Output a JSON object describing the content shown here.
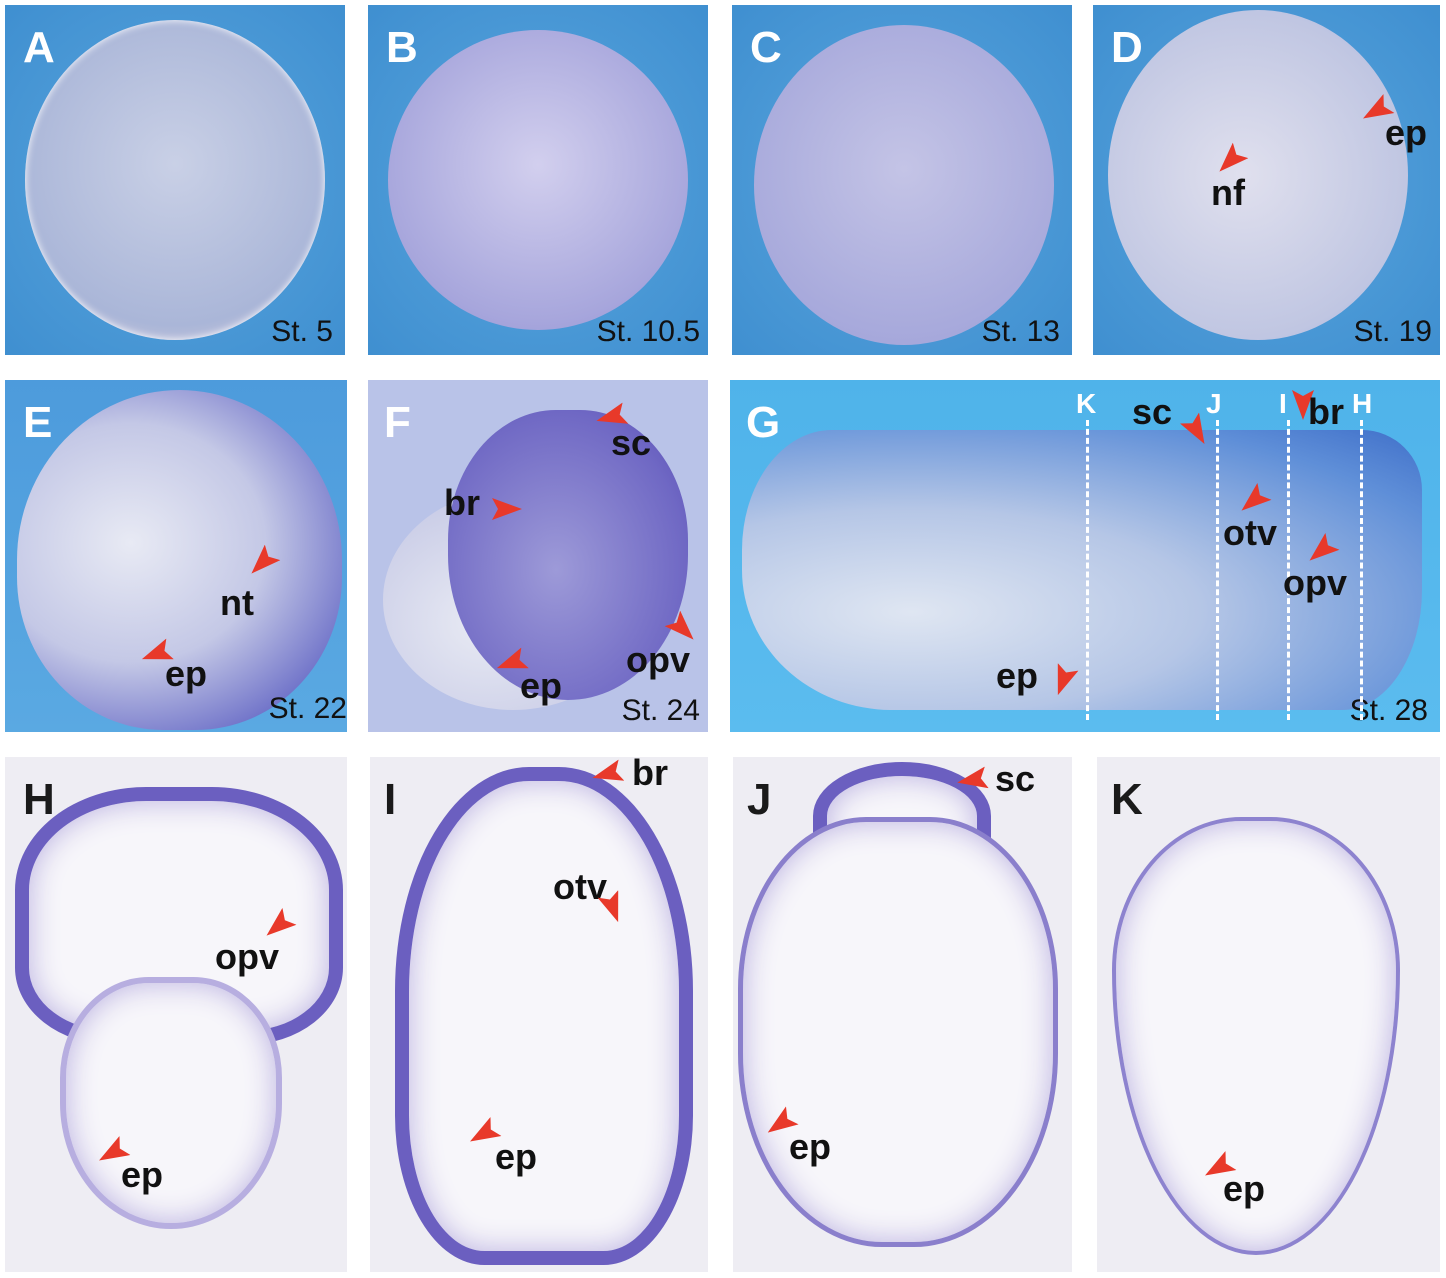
{
  "panels": [
    {
      "letter": "A",
      "stage": "St. 5"
    },
    {
      "letter": "B",
      "stage": "St. 10.5"
    },
    {
      "letter": "C",
      "stage": "St. 13"
    },
    {
      "letter": "D",
      "stage": "St. 19",
      "annotations": [
        "nf",
        "ep"
      ]
    },
    {
      "letter": "E",
      "stage": "St. 22",
      "annotations": [
        "nt",
        "ep"
      ]
    },
    {
      "letter": "F",
      "stage": "St. 24",
      "annotations": [
        "sc",
        "br",
        "opv",
        "ep"
      ]
    },
    {
      "letter": "G",
      "stage": "St. 28",
      "annotations": [
        "sc",
        "br",
        "otv",
        "opv",
        "ep"
      ],
      "section_cuts": [
        "K",
        "J",
        "I",
        "H"
      ]
    },
    {
      "letter": "H",
      "annotations": [
        "opv",
        "ep"
      ]
    },
    {
      "letter": "I",
      "annotations": [
        "br",
        "otv",
        "ep"
      ]
    },
    {
      "letter": "J",
      "annotations": [
        "sc",
        "ep"
      ]
    },
    {
      "letter": "K",
      "annotations": [
        "ep"
      ]
    }
  ],
  "colors": {
    "arrowhead": "#e8392a",
    "stain": "#5a4cb8",
    "background_blue": "#4d9bdc"
  }
}
